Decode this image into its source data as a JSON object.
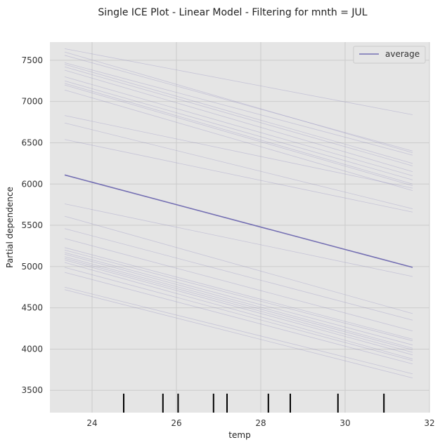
{
  "chart_data": {
    "type": "line",
    "title": "Single ICE Plot - Linear Model -  Filtering for mnth = JUL",
    "xlabel": "temp",
    "ylabel": "Partial dependence",
    "xlim": [
      23.0,
      32.0
    ],
    "ylim": [
      3230,
      7720
    ],
    "xticks": [
      24,
      26,
      28,
      30,
      32
    ],
    "yticks": [
      3500,
      4000,
      4500,
      5000,
      5500,
      6000,
      6500,
      7000,
      7500
    ],
    "grid": true,
    "legend": {
      "position": "top-right",
      "entries": [
        "average"
      ]
    },
    "x_range": [
      23.35,
      31.6
    ],
    "average": {
      "name": "average",
      "y_start": 6110,
      "y_end": 4990
    },
    "ice_lines": [
      [
        7640,
        6840
      ],
      [
        7600,
        6380
      ],
      [
        7560,
        6400
      ],
      [
        7470,
        6350
      ],
      [
        7450,
        6250
      ],
      [
        7420,
        6220
      ],
      [
        7380,
        6150
      ],
      [
        7300,
        6100
      ],
      [
        7250,
        6050
      ],
      [
        7220,
        6000
      ],
      [
        7200,
        5980
      ],
      [
        7140,
        5920
      ],
      [
        6830,
        5950
      ],
      [
        6740,
        5700
      ],
      [
        6540,
        5660
      ],
      [
        5760,
        4880
      ],
      [
        5610,
        4430
      ],
      [
        5460,
        4350
      ],
      [
        5340,
        4220
      ],
      [
        5230,
        4120
      ],
      [
        5200,
        4100
      ],
      [
        5170,
        4050
      ],
      [
        5150,
        4010
      ],
      [
        5120,
        3990
      ],
      [
        5100,
        3960
      ],
      [
        5080,
        3930
      ],
      [
        5050,
        3880
      ],
      [
        4990,
        3860
      ],
      [
        4930,
        3820
      ],
      [
        4750,
        3700
      ],
      [
        4720,
        3650
      ]
    ],
    "rug_x": [
      24.75,
      25.68,
      26.04,
      26.88,
      27.2,
      28.18,
      28.7,
      29.83,
      30.92
    ],
    "colors": {
      "average": "#7570b3",
      "ice": "#7570b3",
      "background": "#e5e5e5",
      "grid": "#cccccc",
      "rug": "#000000"
    }
  }
}
